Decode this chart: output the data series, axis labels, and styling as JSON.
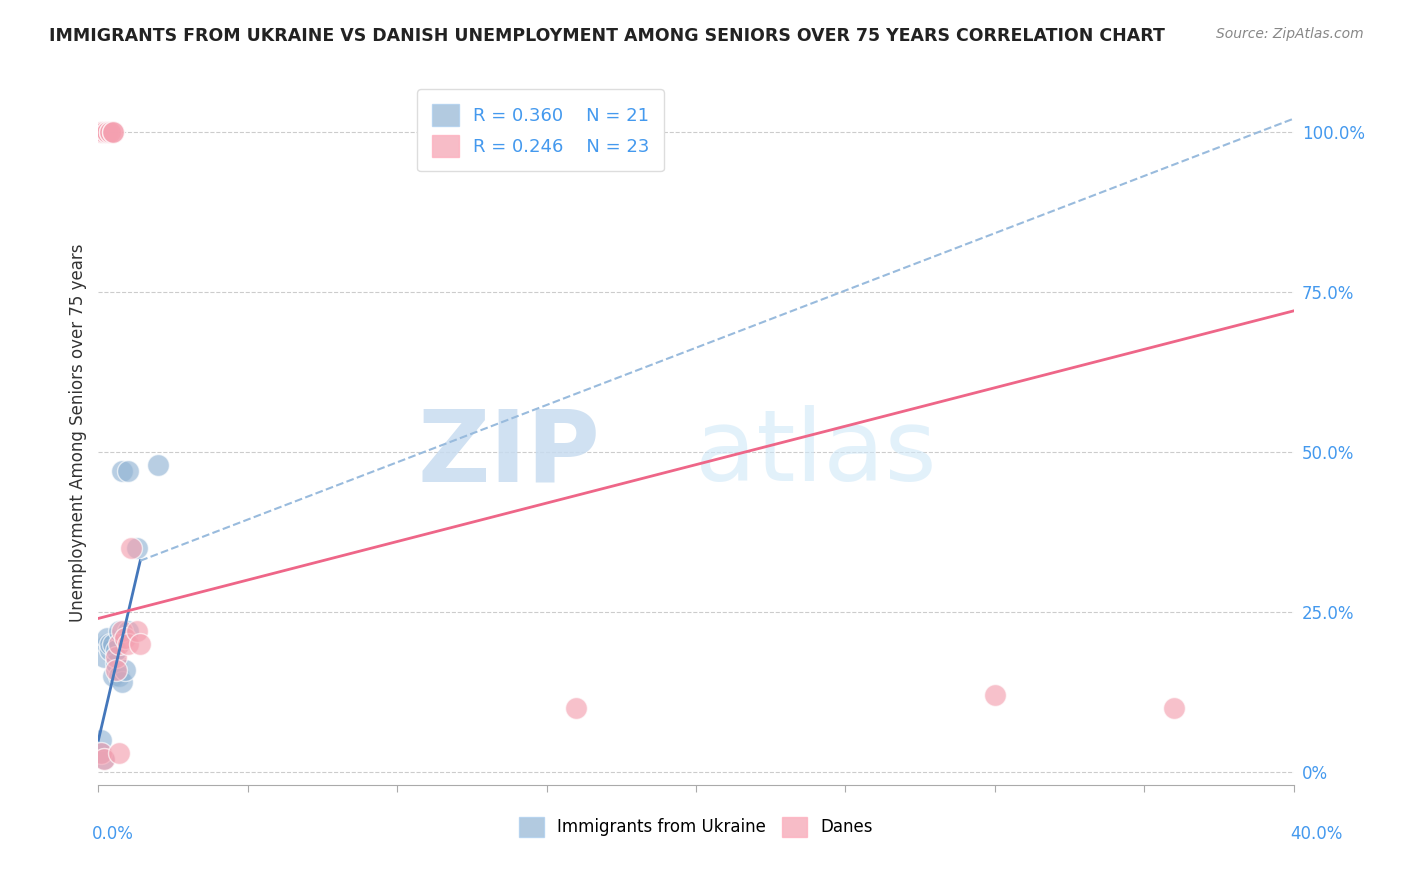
{
  "title": "IMMIGRANTS FROM UKRAINE VS DANISH UNEMPLOYMENT AMONG SENIORS OVER 75 YEARS CORRELATION CHART",
  "source": "Source: ZipAtlas.com",
  "ylabel": "Unemployment Among Seniors over 75 years",
  "ytick_values": [
    0.0,
    0.25,
    0.5,
    0.75,
    1.0
  ],
  "ytick_labels_right": [
    "0%",
    "25.0%",
    "50.0%",
    "75.0%",
    "100.0%"
  ],
  "xlim": [
    0.0,
    0.4
  ],
  "ylim": [
    -0.02,
    1.08
  ],
  "legend_blue_r": "R = 0.360",
  "legend_blue_n": "N = 21",
  "legend_pink_r": "R = 0.246",
  "legend_pink_n": "N = 23",
  "blue_color": "#92b4d4",
  "pink_color": "#f4a0b0",
  "blue_line_color": "#4477BB",
  "pink_line_color": "#EE6688",
  "blue_dashed_color": "#99BBDD",
  "blue_points_x": [
    0.001,
    0.001,
    0.002,
    0.002,
    0.003,
    0.003,
    0.004,
    0.004,
    0.005,
    0.005,
    0.006,
    0.006,
    0.007,
    0.007,
    0.008,
    0.008,
    0.009,
    0.01,
    0.01,
    0.013,
    0.02
  ],
  "blue_points_y": [
    0.03,
    0.05,
    0.02,
    0.18,
    0.2,
    0.21,
    0.19,
    0.2,
    0.2,
    0.15,
    0.17,
    0.19,
    0.22,
    0.15,
    0.47,
    0.14,
    0.16,
    0.22,
    0.47,
    0.35,
    0.48
  ],
  "pink_points_x": [
    0.001,
    0.001,
    0.002,
    0.002,
    0.003,
    0.003,
    0.004,
    0.004,
    0.005,
    0.005,
    0.006,
    0.006,
    0.007,
    0.007,
    0.008,
    0.009,
    0.01,
    0.011,
    0.013,
    0.014,
    0.16,
    0.3,
    0.36
  ],
  "pink_points_y": [
    0.03,
    1.0,
    0.02,
    1.0,
    1.0,
    1.0,
    1.0,
    1.0,
    1.0,
    1.0,
    0.18,
    0.16,
    0.2,
    0.03,
    0.22,
    0.21,
    0.2,
    0.35,
    0.22,
    0.2,
    0.1,
    0.12,
    0.1
  ],
  "blue_trend_x": [
    0.0,
    0.014
  ],
  "blue_trend_y": [
    0.05,
    0.33
  ],
  "blue_dashed_trend_x": [
    0.014,
    0.4
  ],
  "blue_dashed_trend_y": [
    0.33,
    1.02
  ],
  "pink_trend_x": [
    0.0,
    0.4
  ],
  "pink_trend_y": [
    0.24,
    0.72
  ]
}
